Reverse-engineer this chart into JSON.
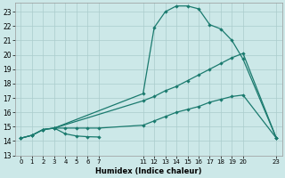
{
  "bg_color": "#cce8e8",
  "grid_color": "#aacccc",
  "line_color": "#1a7a6e",
  "xlabel": "Humidex (Indice chaleur)",
  "xlim": [
    -0.5,
    23.5
  ],
  "ylim": [
    13.0,
    23.6
  ],
  "yticks": [
    13,
    14,
    15,
    16,
    17,
    18,
    19,
    20,
    21,
    22,
    23
  ],
  "xtick_positions": [
    0,
    1,
    2,
    3,
    4,
    5,
    6,
    7,
    11,
    12,
    13,
    14,
    15,
    16,
    17,
    18,
    19,
    20,
    23
  ],
  "xtick_labels": [
    "0",
    "1",
    "2",
    "3",
    "4",
    "5",
    "6",
    "7",
    "11",
    "12",
    "13",
    "14",
    "15",
    "16",
    "17",
    "18",
    "19",
    "20",
    "23"
  ],
  "curve_upper_x": [
    0,
    1,
    2,
    3,
    11,
    12,
    13,
    14,
    15,
    16,
    17,
    18,
    19,
    20,
    23
  ],
  "curve_upper_y": [
    14.2,
    14.4,
    14.8,
    14.9,
    17.3,
    21.9,
    23.0,
    23.4,
    23.4,
    23.2,
    22.1,
    21.8,
    21.0,
    19.7,
    14.2
  ],
  "curve_mid_x": [
    0,
    1,
    2,
    3,
    11,
    12,
    13,
    14,
    15,
    16,
    17,
    18,
    19,
    20,
    23
  ],
  "curve_mid_y": [
    14.2,
    14.4,
    14.8,
    14.9,
    16.8,
    17.1,
    17.5,
    17.8,
    18.2,
    18.6,
    19.0,
    19.4,
    19.8,
    20.1,
    14.2
  ],
  "curve_lower_x": [
    0,
    1,
    2,
    3,
    4,
    5,
    6,
    7,
    11,
    12,
    13,
    14,
    15,
    16,
    17,
    18,
    19,
    20,
    23
  ],
  "curve_lower_y": [
    14.2,
    14.4,
    14.8,
    14.9,
    14.9,
    14.9,
    14.9,
    14.9,
    15.1,
    15.4,
    15.7,
    16.0,
    16.2,
    16.4,
    16.7,
    16.9,
    17.1,
    17.2,
    14.2
  ],
  "curve_dip_x": [
    3,
    4,
    5,
    6,
    7
  ],
  "curve_dip_y": [
    14.9,
    14.5,
    14.35,
    14.3,
    14.28
  ]
}
